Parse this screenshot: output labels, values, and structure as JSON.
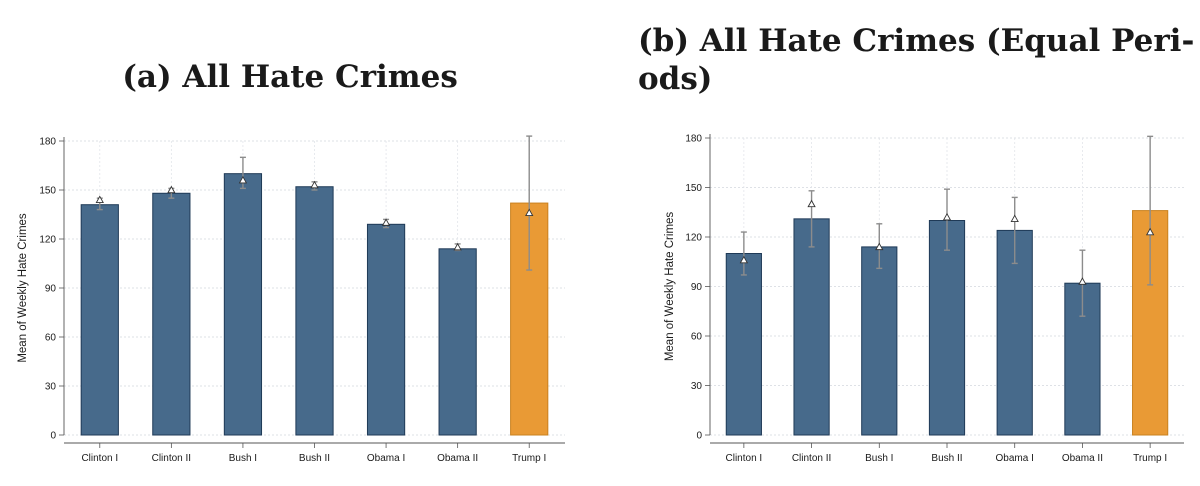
{
  "chart_data": [
    {
      "type": "bar",
      "title": "(a) All Hate Crimes",
      "ylabel": "Mean of Weekly Hate Crimes",
      "xlabel": "",
      "ylim": [
        0,
        180
      ],
      "yticks": [
        0,
        30,
        60,
        90,
        120,
        150,
        180
      ],
      "grid": true,
      "categories": [
        "Clinton I",
        "Clinton II",
        "Bush I",
        "Bush II",
        "Obama I",
        "Obama II",
        "Trump I"
      ],
      "values": [
        141,
        148,
        160,
        152,
        129,
        114,
        142
      ],
      "ci_low": [
        138,
        145,
        151,
        150,
        127,
        113,
        101
      ],
      "ci_high": [
        145,
        151,
        170,
        155,
        132,
        117,
        183
      ],
      "markers": [
        144,
        150,
        156,
        153,
        130,
        115,
        136
      ],
      "bar_colors": [
        "#476a8b",
        "#476a8b",
        "#476a8b",
        "#476a8b",
        "#476a8b",
        "#476a8b",
        "#e99a35"
      ]
    },
    {
      "type": "bar",
      "title": "(b) All Hate Crimes (Equal Peri- ods)",
      "ylabel": "Mean of Weekly Hate Crimes",
      "xlabel": "",
      "ylim": [
        0,
        180
      ],
      "yticks": [
        0,
        30,
        60,
        90,
        120,
        150,
        180
      ],
      "grid": true,
      "categories": [
        "Clinton I",
        "Clinton II",
        "Bush I",
        "Bush II",
        "Obama I",
        "Obama II",
        "Trump I"
      ],
      "values": [
        110,
        131,
        114,
        130,
        124,
        92,
        136
      ],
      "ci_low": [
        97,
        114,
        101,
        112,
        104,
        72,
        91
      ],
      "ci_high": [
        123,
        148,
        128,
        149,
        144,
        112,
        181
      ],
      "markers": [
        106,
        140,
        114,
        132,
        131,
        93,
        123
      ],
      "bar_colors": [
        "#476a8b",
        "#476a8b",
        "#476a8b",
        "#476a8b",
        "#476a8b",
        "#476a8b",
        "#e99a35"
      ]
    }
  ]
}
